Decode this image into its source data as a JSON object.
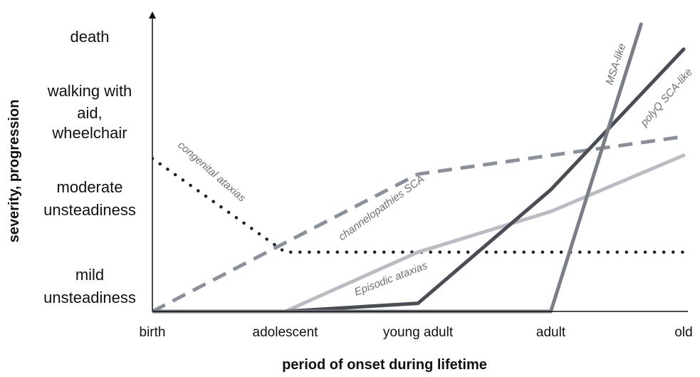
{
  "chart_data": {
    "type": "line",
    "title": "",
    "xlabel": "period of onset during lifetime",
    "ylabel": "severity, progression",
    "categories": [
      "birth",
      "adolescent",
      "young adult",
      "adult",
      "old"
    ],
    "y_levels": [
      "mild unsteadiness",
      "moderate unsteadiness",
      "walking with aid, wheelchair",
      "death"
    ],
    "x_range": [
      0,
      4
    ],
    "y_range": [
      0,
      4.5
    ],
    "grid": false,
    "series": [
      {
        "name": "congenital ataxias",
        "style": "dotted",
        "color": "#1e1e24",
        "points": [
          [
            0,
            2.45
          ],
          [
            1,
            0.95
          ],
          [
            4,
            0.95
          ]
        ]
      },
      {
        "name": "channelopathies SCA",
        "style": "dashed",
        "color": "#8a919c",
        "points": [
          [
            0,
            0
          ],
          [
            2,
            2.2
          ],
          [
            4,
            2.8
          ]
        ]
      },
      {
        "name": "Episodic ataxias",
        "style": "solid",
        "color": "#bdbac4",
        "points": [
          [
            1,
            0
          ],
          [
            2,
            0.95
          ],
          [
            3,
            1.6
          ],
          [
            4,
            2.5
          ]
        ]
      },
      {
        "name": "polyQ SCA-like",
        "style": "solid",
        "color": "#4a4d55",
        "points": [
          [
            0,
            0
          ],
          [
            1,
            0
          ],
          [
            2,
            0.13
          ],
          [
            3,
            1.95
          ],
          [
            4,
            4.2
          ]
        ]
      },
      {
        "name": "MSA-like",
        "style": "solid",
        "color": "#7a7e86",
        "points": [
          [
            0,
            0
          ],
          [
            3,
            0
          ],
          [
            3.68,
            4.6
          ]
        ]
      }
    ]
  }
}
